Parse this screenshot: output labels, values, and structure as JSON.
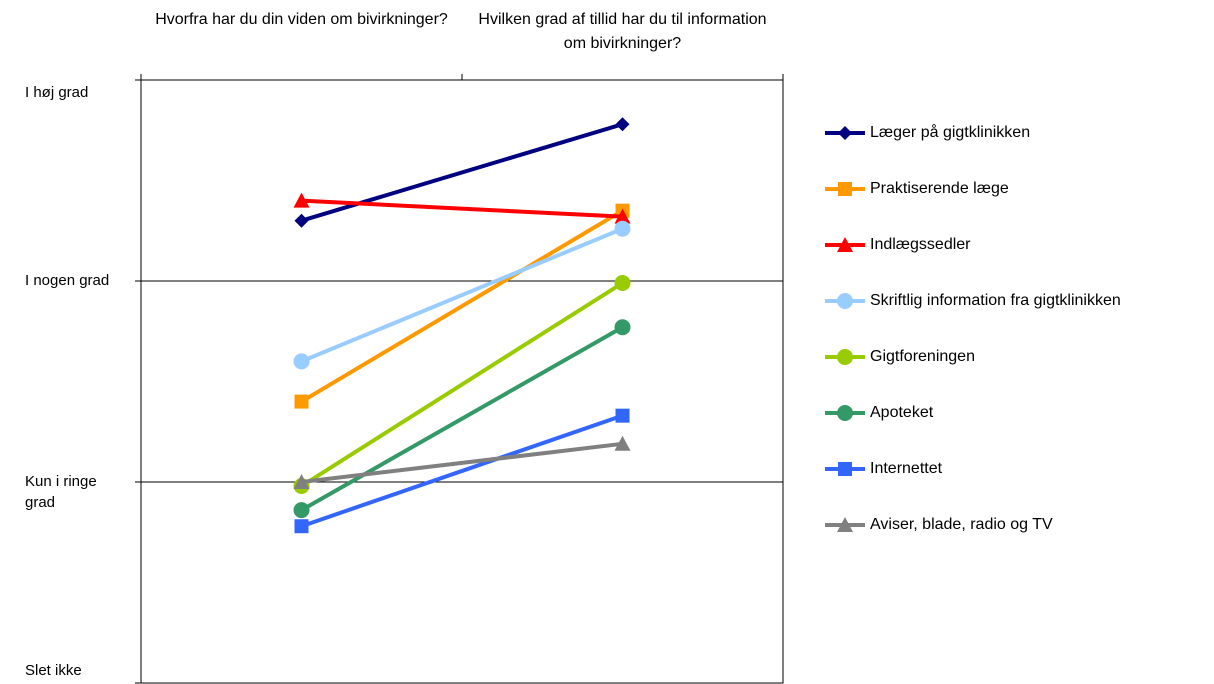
{
  "chart_data": {
    "type": "line",
    "categories": [
      "Hvorfra har du din viden om bivirkninger?",
      "Hvilken grad af tillid har du til information om bivirkninger?"
    ],
    "ylim": [
      0,
      3
    ],
    "yticks": [
      {
        "value": 0,
        "label": "Slet ikke"
      },
      {
        "value": 1,
        "label": "Kun i ringe grad"
      },
      {
        "value": 2,
        "label": "I nogen grad"
      },
      {
        "value": 3,
        "label": "I høj grad"
      }
    ],
    "grid": true,
    "legend": "right",
    "series": [
      {
        "name": "Læger på gigtklinikken",
        "color": "#000080",
        "marker": "diamond",
        "values": [
          2.3,
          2.78
        ]
      },
      {
        "name": "Praktiserende læge",
        "color": "#ff9900",
        "marker": "square",
        "values": [
          1.4,
          2.35
        ]
      },
      {
        "name": "Indlægssedler",
        "color": "#ff0000",
        "marker": "triangle",
        "values": [
          2.4,
          2.32
        ]
      },
      {
        "name": "Skriftlig information fra gigtklinikken",
        "color": "#99ccff",
        "marker": "circle",
        "values": [
          1.6,
          2.26
        ]
      },
      {
        "name": "Gigtforeningen",
        "color": "#99cc00",
        "marker": "circle",
        "values": [
          0.98,
          1.99
        ]
      },
      {
        "name": "Apoteket",
        "color": "#339966",
        "marker": "circle",
        "values": [
          0.86,
          1.77
        ]
      },
      {
        "name": "Internettet",
        "color": "#3366ff",
        "marker": "square",
        "values": [
          0.78,
          1.33
        ]
      },
      {
        "name": "Aviser, blade, radio og TV",
        "color": "#808080",
        "marker": "triangle",
        "values": [
          1.0,
          1.19
        ]
      }
    ]
  }
}
